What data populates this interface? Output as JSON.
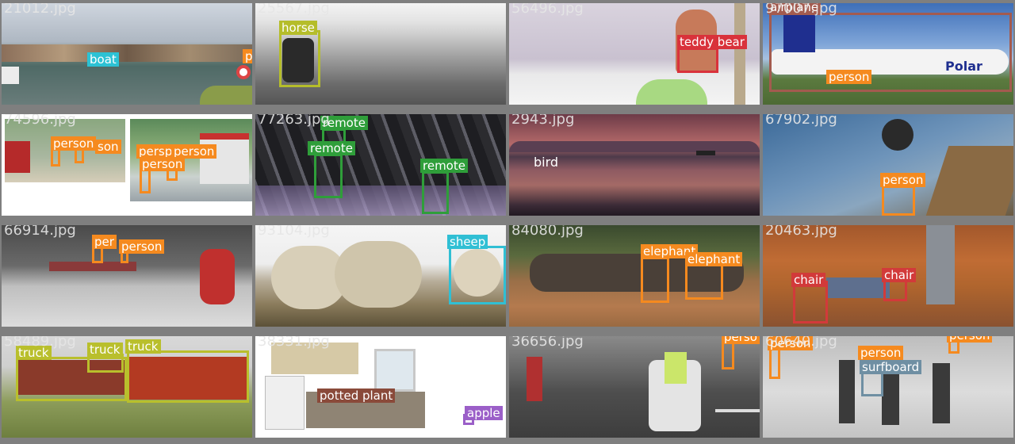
{
  "grid_title": "",
  "colors": {
    "boat": "#2cc2d4",
    "horse": "#b5bd2a",
    "teddy_bear": "#d9323b",
    "airplane": "#a35b4f",
    "person": "#f58a1f",
    "remote": "#2f9e3a",
    "bird": "#c39a7a",
    "sheep": "#30bfd4",
    "elephant": "#f58a1f",
    "chair": "#d23a3a",
    "truck": "#b9bf2c",
    "potted_plant": "#8a4a3a",
    "apple": "#9b5fc8",
    "surfboard": "#6f8fa3"
  },
  "tiles": [
    {
      "file": "21012.jpg",
      "labels": [
        "boat",
        "p"
      ]
    },
    {
      "file": "25567.jpg",
      "labels": [
        "horse"
      ]
    },
    {
      "file": "56496.jpg",
      "labels": [
        "teddy bear"
      ]
    },
    {
      "file": "97007.jpg",
      "labels": [
        "airplane",
        "person"
      ]
    },
    {
      "file": "74596.jpg",
      "labels": [
        "person",
        "son",
        "perspe",
        "person",
        "person"
      ]
    },
    {
      "file": "77263.jpg",
      "labels": [
        "remote",
        "remote",
        "remote"
      ]
    },
    {
      "file": "2943.jpg",
      "labels": [
        "bird"
      ]
    },
    {
      "file": "67902.jpg",
      "labels": [
        "person"
      ]
    },
    {
      "file": "66914.jpg",
      "labels": [
        "per",
        "person"
      ]
    },
    {
      "file": "93104.jpg",
      "labels": [
        "sheep"
      ]
    },
    {
      "file": "84080.jpg",
      "labels": [
        "elephant",
        "elephant"
      ]
    },
    {
      "file": "20463.jpg",
      "labels": [
        "chair",
        "chair"
      ]
    },
    {
      "file": "58489.jpg",
      "labels": [
        "truck",
        "truck",
        "truck"
      ]
    },
    {
      "file": "38331.jpg",
      "labels": [
        "potted plant",
        "apple"
      ]
    },
    {
      "file": "36656.jpg",
      "labels": [
        "perso"
      ]
    },
    {
      "file": "60640.jpg",
      "labels": [
        "person",
        "person",
        "person",
        "surfboard"
      ]
    }
  ]
}
